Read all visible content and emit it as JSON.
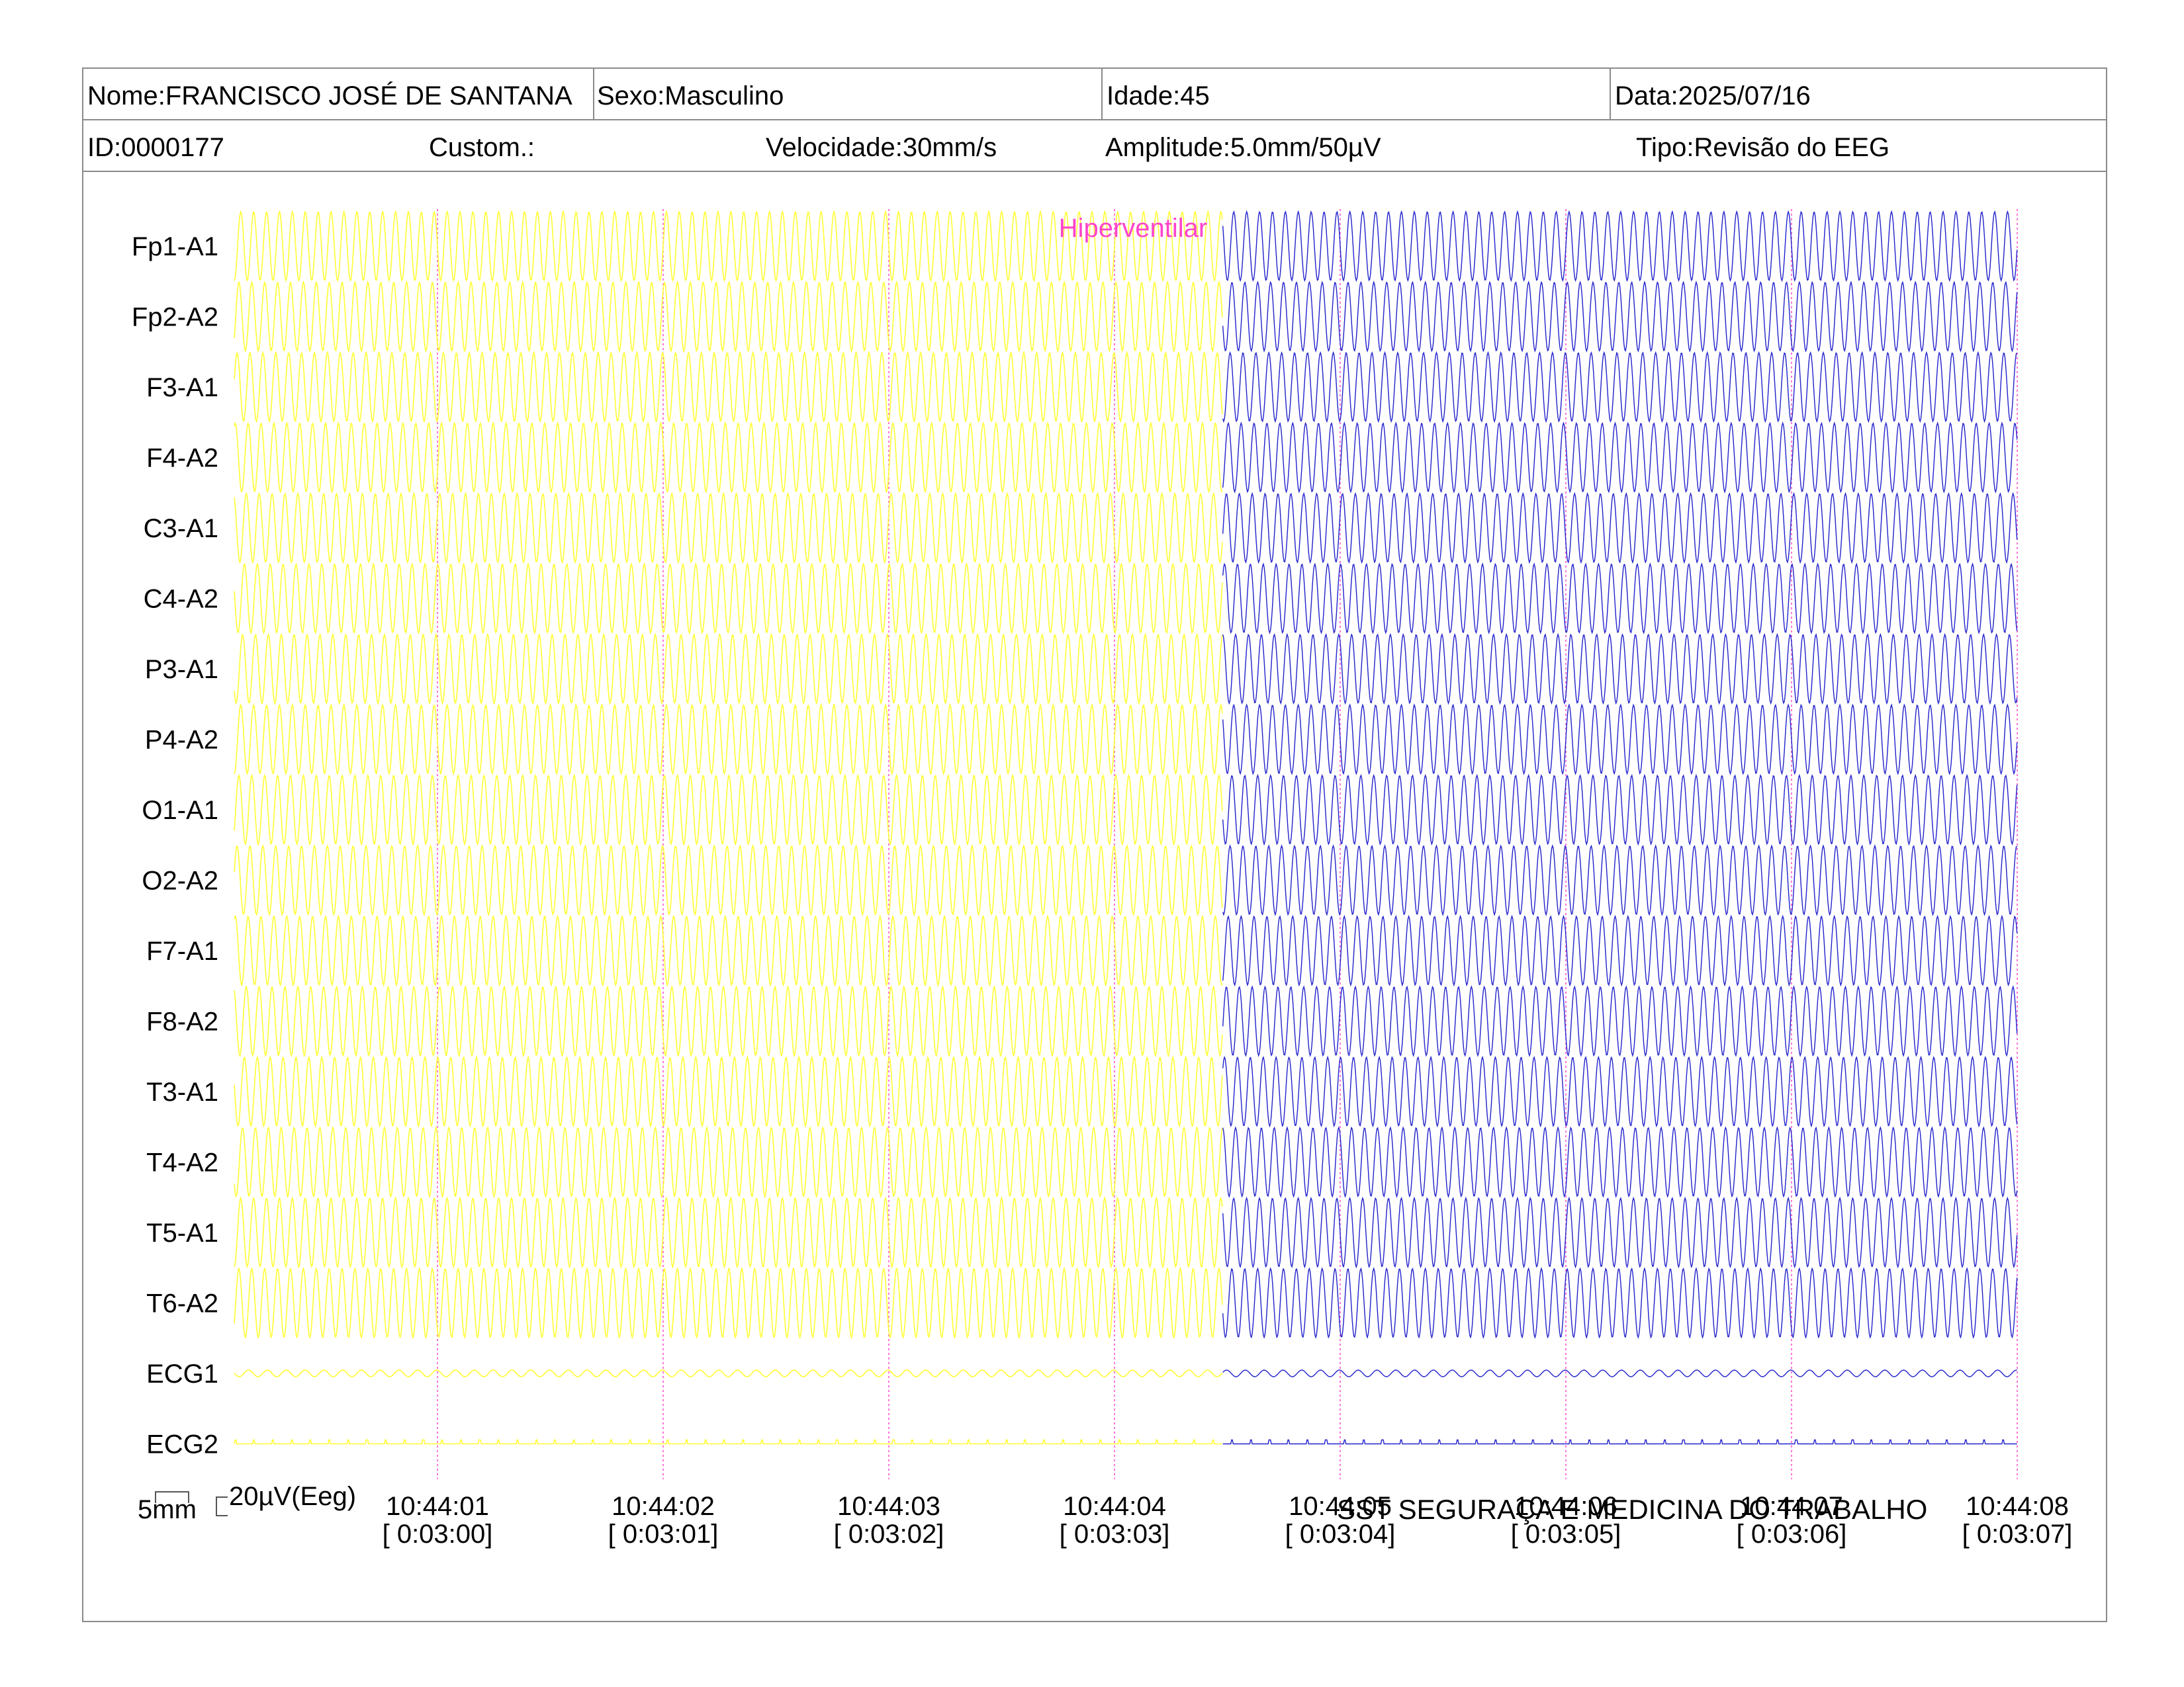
{
  "header": {
    "nome": "Nome:FRANCISCO JOSÉ DE SANTANA",
    "sexo": "Sexo:Masculino",
    "idade": "Idade:45",
    "data": "Data:2025/07/16",
    "id": "ID:0000177",
    "custom": "Custom.:",
    "velocidade": "Velocidade:30mm/s",
    "amplitude": "Amplitude:5.0mm/50µV",
    "tipo": "Tipo:Revisão do EEG"
  },
  "annotation": {
    "text": "Hiperventilar",
    "color": "#ff44cc"
  },
  "scale": {
    "time_label": "5mm",
    "amp_label": "20µV(Eeg)"
  },
  "footer": {
    "company": "SST SEGURAÇA E MEDICINA DO TRABALHO"
  },
  "colors": {
    "segment_before": "#ffff33",
    "segment_after": "#2222cc",
    "marker_lines": "#ff44cc",
    "border": "#8a8a8a"
  },
  "chart_data": {
    "type": "line",
    "title": "",
    "xlabel": "",
    "ylabel": "",
    "channels": [
      "Fp1-A1",
      "Fp2-A2",
      "F3-A1",
      "F4-A2",
      "C3-A1",
      "C4-A2",
      "P3-A1",
      "P4-A2",
      "O1-A1",
      "O2-A2",
      "F7-A1",
      "F8-A2",
      "T3-A1",
      "T4-A2",
      "T5-A1",
      "T6-A2",
      "ECG1",
      "ECG2"
    ],
    "time_ticks": [
      {
        "clock": "10:44:01",
        "elapsed": "[ 0:03:00]",
        "t": 1
      },
      {
        "clock": "10:44:02",
        "elapsed": "[ 0:03:01]",
        "t": 2
      },
      {
        "clock": "10:44:03",
        "elapsed": "[ 0:03:02]",
        "t": 3
      },
      {
        "clock": "10:44:04",
        "elapsed": "[ 0:03:03]",
        "t": 4
      },
      {
        "clock": "10:44:05",
        "elapsed": "[ 0:03:04]",
        "t": 5
      },
      {
        "clock": "10:44:06",
        "elapsed": "[ 0:03:05]",
        "t": 6
      },
      {
        "clock": "10:44:07",
        "elapsed": "[ 0:03:06]",
        "t": 7
      },
      {
        "clock": "10:44:08",
        "elapsed": "[ 0:03:07]",
        "t": 8
      }
    ],
    "x_range": [
      0.1,
      8.0
    ],
    "segment_change_t": 4.48,
    "annotation_t": 4.48,
    "eeg_frequency_hz": 17.5,
    "ecg_frequency_hz": 12,
    "series": [
      {
        "name": "before",
        "t_range": [
          0.1,
          4.48
        ]
      },
      {
        "name": "after",
        "t_range": [
          4.48,
          8.0
        ]
      }
    ],
    "grid": false
  }
}
